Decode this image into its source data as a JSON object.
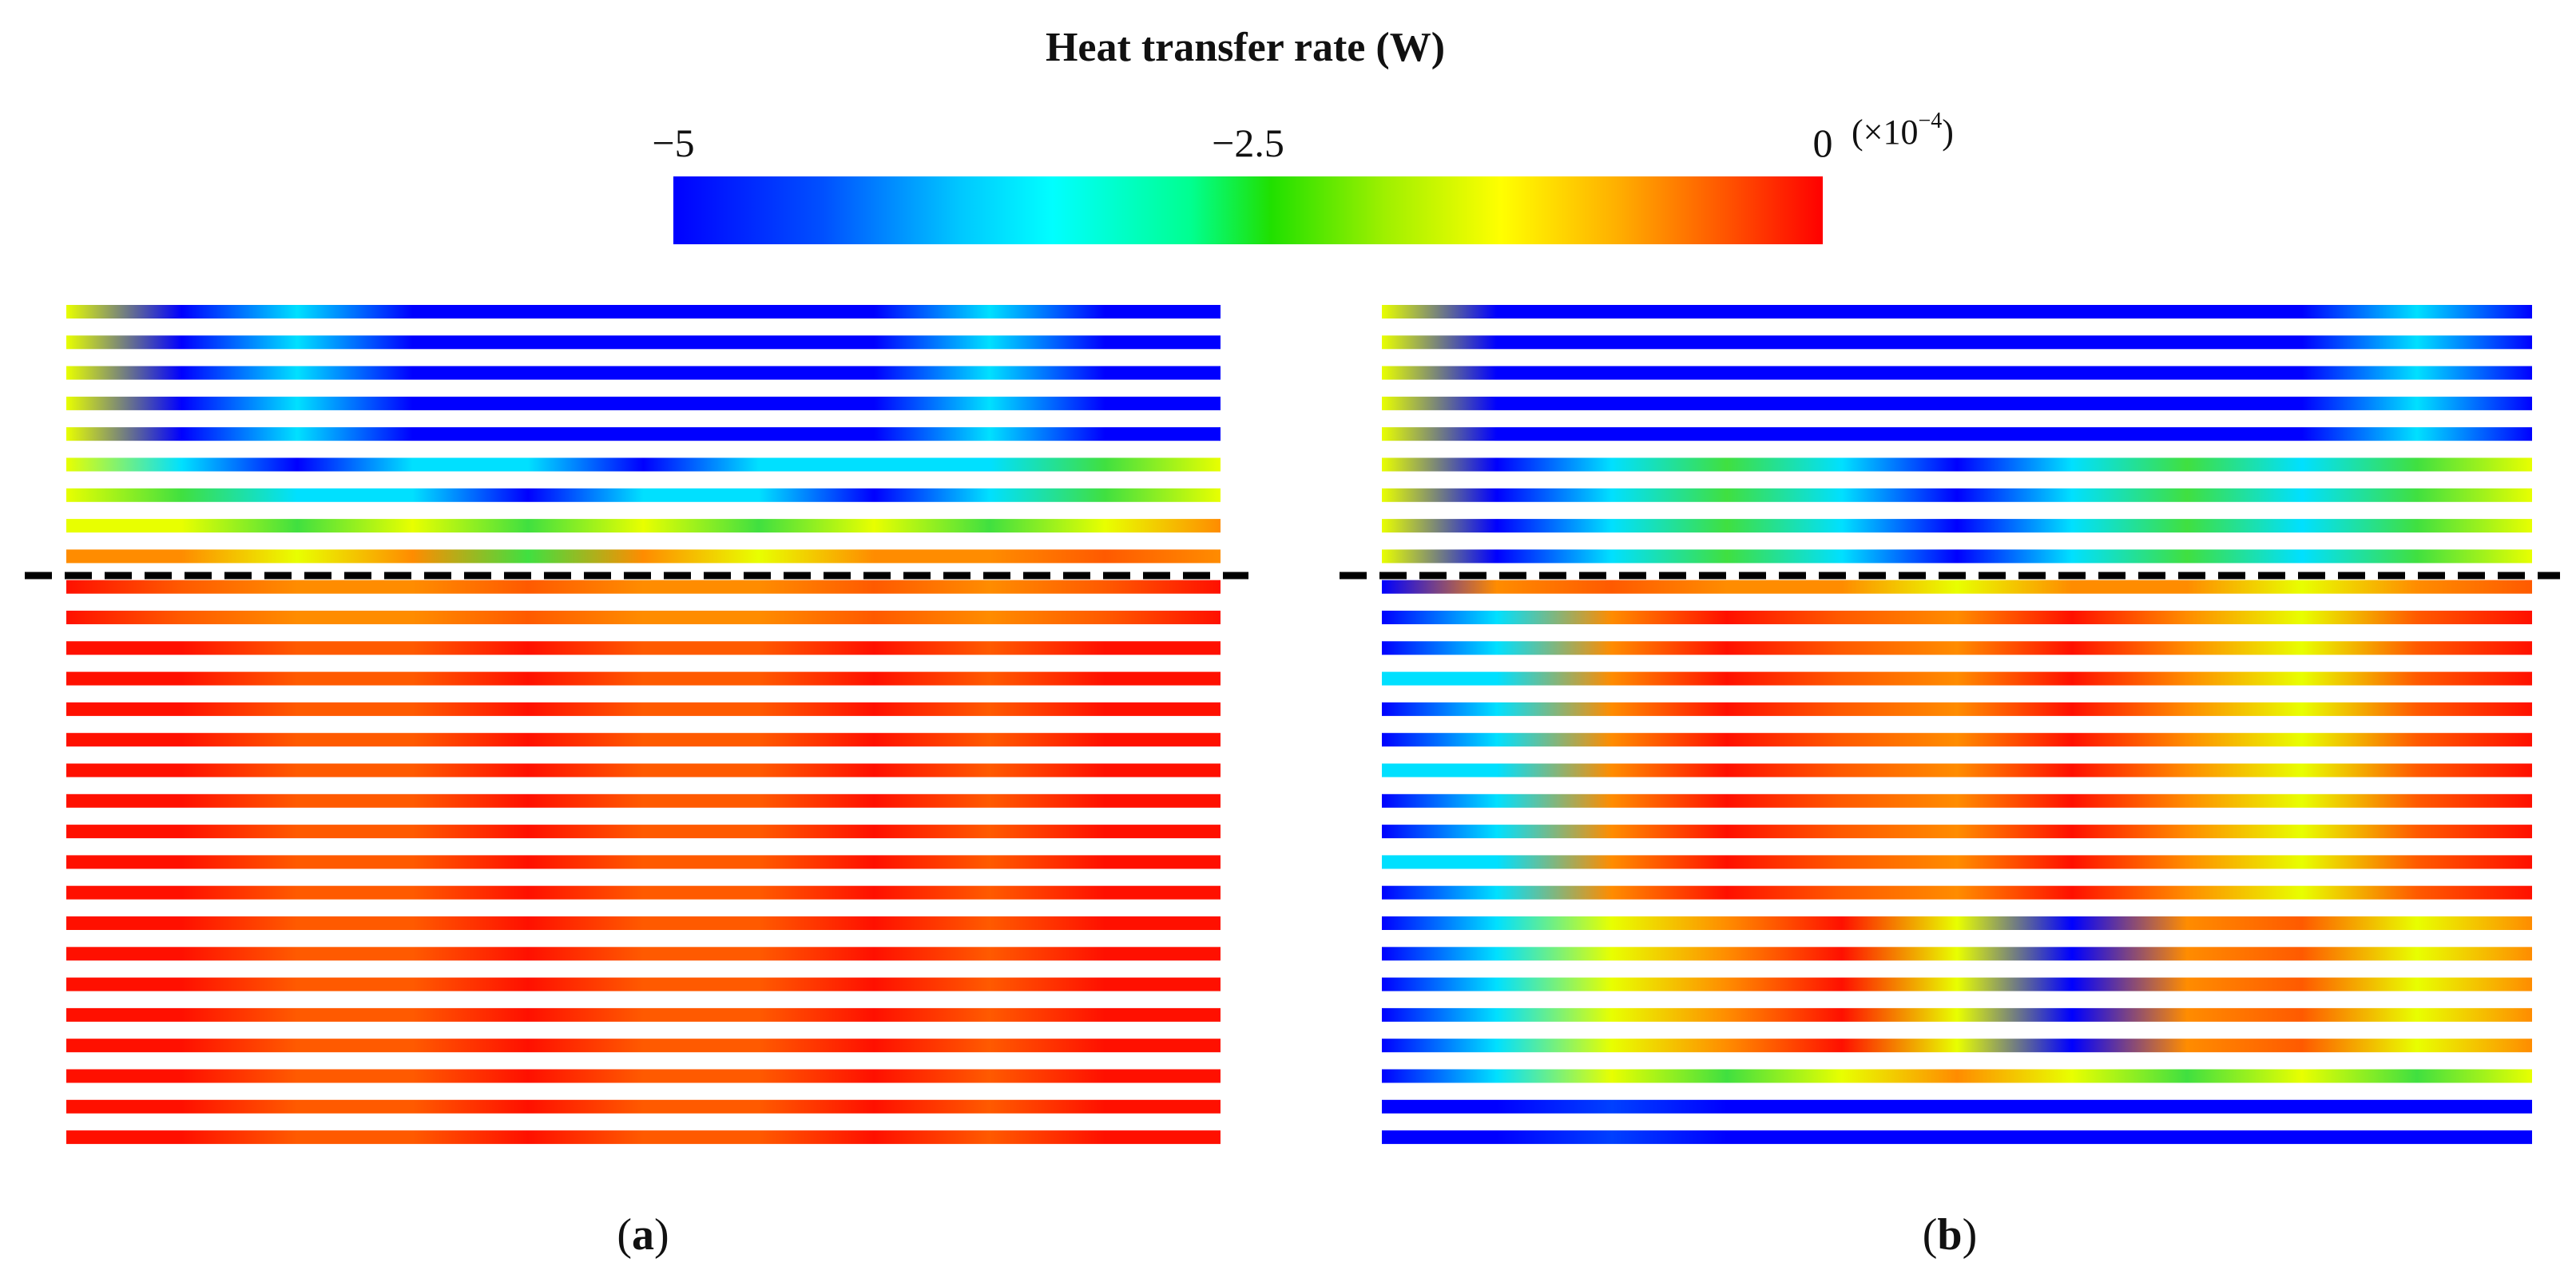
{
  "colorbar": {
    "title": "Heat transfer rate (W)",
    "lim": [
      -5,
      0
    ],
    "ticks": [
      {
        "value": -5,
        "label": "−5"
      },
      {
        "value": -2.5,
        "label": "−2.5"
      },
      0
    ],
    "multiplier": {
      "prefix": "(×10",
      "exponent": "−4",
      "suffix": ")"
    }
  },
  "panels": [
    {
      "label": [
        "(",
        "a",
        ")"
      ]
    },
    {
      "label": [
        "(",
        "b",
        ")"
      ]
    }
  ]
}
